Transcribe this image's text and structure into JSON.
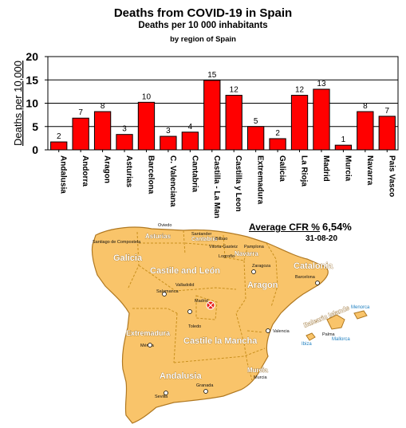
{
  "titles": {
    "main": "Deaths from COVID-19 in Spain",
    "sub": "Deaths per 10 000 inhabitants",
    "sub2": "by region of Spain"
  },
  "cfr": {
    "label": "Average CFR %",
    "value": "6,54%",
    "date": "31-08-20"
  },
  "chart_data": {
    "type": "bar",
    "title": "Deaths from COVID-19 in Spain",
    "ylabel": "Deaths per 10,000",
    "ylim": [
      0,
      20
    ],
    "yticks": [
      0,
      5,
      10,
      15,
      20
    ],
    "grid": true,
    "bar_color": "#ff0000",
    "categories": [
      "Andalusia",
      "Andorra",
      "Aragon",
      "Asturias",
      "Barcelona",
      "C. Valenciana",
      "Cantabria",
      "Castilla - La Man",
      "Castilla y Leon",
      "Extremadura",
      "Galicia",
      "La Rioja",
      "Madrid",
      "Murcia",
      "Navarra",
      "Pais Vasco"
    ],
    "values": [
      2,
      7,
      8,
      3,
      10,
      3,
      4,
      15,
      12,
      5,
      2,
      12,
      13,
      1,
      8,
      7
    ],
    "heights": [
      1.7,
      6.8,
      8.2,
      3.3,
      10.2,
      2.9,
      3.8,
      14.9,
      11.7,
      5.0,
      2.4,
      11.7,
      13.0,
      1.0,
      8.2,
      7.2
    ]
  },
  "map": {
    "fill_color": "#f9c46a",
    "border_color": "#b07820",
    "regions": [
      "Galicia",
      "Asturias",
      "Cantabria",
      "Navarra",
      "Catalonia",
      "Castile and León",
      "Aragon",
      "Extremadura",
      "Castile la Mancha",
      "Andalusia",
      "Murcia",
      "Balearic Islands"
    ],
    "cities": [
      "Oviedo",
      "Santiago de Compostela",
      "Santander",
      "Bilbao",
      "Vitoria-Gasteiz",
      "Pamplona",
      "Logroño",
      "Zaragoza",
      "Barcelona",
      "Valladolid",
      "Salamanca",
      "Madrid",
      "Toledo",
      "Valencia",
      "Mérida",
      "Sevilla",
      "Granada",
      "Murcia",
      "Palma",
      "Mallorca",
      "Menorca",
      "Ibiza"
    ],
    "isle_labels": [
      "Menorca",
      "Mallorca",
      "Ibiza"
    ]
  }
}
